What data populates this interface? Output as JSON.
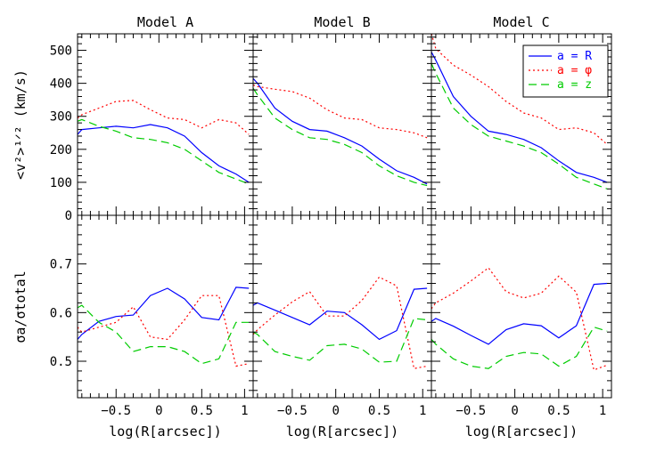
{
  "figure": {
    "xlabel": "log(R[arcsec])",
    "ylabel_top": "<v²>¹ᐟ² (km/s)",
    "ylabel_bottom": "σa/σtotal",
    "legend": {
      "placement": "top-right",
      "entries": [
        {
          "label": "a = R",
          "color": "#0000ff",
          "dash": "solid"
        },
        {
          "label": "a = φ",
          "color": "#ff0000",
          "dash": "dotted"
        },
        {
          "label": "a = z",
          "color": "#00cc00",
          "dash": "dashed"
        }
      ]
    },
    "x_ticks": [
      {
        "value": -0.5,
        "label": "−0.5"
      },
      {
        "value": 0,
        "label": "0"
      },
      {
        "value": 0.5,
        "label": "0.5"
      },
      {
        "value": 1,
        "label": "1"
      }
    ],
    "top_y_ticks": [
      {
        "value": 0,
        "label": "0"
      },
      {
        "value": 100,
        "label": "100"
      },
      {
        "value": 200,
        "label": "200"
      },
      {
        "value": 300,
        "label": "300"
      },
      {
        "value": 400,
        "label": "400"
      },
      {
        "value": 500,
        "label": "500"
      }
    ],
    "bottom_y_ticks": [
      {
        "value": 0.5,
        "label": "0.5"
      },
      {
        "value": 0.6,
        "label": "0.6"
      },
      {
        "value": 0.7,
        "label": "0.7"
      }
    ]
  },
  "chart_data": [
    {
      "type": "line",
      "title": "Model A",
      "xlim": [
        -0.95,
        1.1
      ],
      "top": {
        "ylim": [
          0,
          550
        ],
        "series": [
          {
            "name": "a = R",
            "x": [
              -0.95,
              -0.9,
              -0.7,
              -0.5,
              -0.3,
              -0.1,
              0.1,
              0.3,
              0.5,
              0.7,
              0.9,
              1.05
            ],
            "values": [
              245,
              260,
              265,
              270,
              265,
              275,
              265,
              240,
              190,
              150,
              125,
              100
            ]
          },
          {
            "name": "a = φ",
            "x": [
              -0.95,
              -0.9,
              -0.7,
              -0.5,
              -0.3,
              -0.1,
              0.1,
              0.3,
              0.5,
              0.7,
              0.9,
              1.05
            ],
            "values": [
              295,
              305,
              325,
              345,
              348,
              320,
              295,
              290,
              265,
              290,
              280,
              245
            ]
          },
          {
            "name": "a = z",
            "x": [
              -0.95,
              -0.9,
              -0.7,
              -0.5,
              -0.3,
              -0.1,
              0.1,
              0.3,
              0.5,
              0.7,
              0.9,
              1.05
            ],
            "values": [
              285,
              290,
              270,
              255,
              235,
              230,
              220,
              200,
              165,
              130,
              110,
              95
            ]
          }
        ]
      },
      "bottom": {
        "ylim": [
          0.425,
          0.8
        ],
        "series": [
          {
            "name": "a = R",
            "x": [
              -0.95,
              -0.9,
              -0.7,
              -0.5,
              -0.3,
              -0.1,
              0.1,
              0.3,
              0.5,
              0.7,
              0.9,
              1.05
            ],
            "values": [
              0.545,
              0.555,
              0.582,
              0.592,
              0.595,
              0.635,
              0.65,
              0.628,
              0.59,
              0.585,
              0.652,
              0.65
            ]
          },
          {
            "name": "a = φ",
            "x": [
              -0.95,
              -0.9,
              -0.7,
              -0.5,
              -0.3,
              -0.1,
              0.1,
              0.3,
              0.5,
              0.7,
              0.9,
              1.05
            ],
            "values": [
              0.57,
              0.56,
              0.57,
              0.58,
              0.612,
              0.55,
              0.545,
              0.585,
              0.635,
              0.635,
              0.49,
              0.495
            ]
          },
          {
            "name": "a = z",
            "x": [
              -0.95,
              -0.9,
              -0.7,
              -0.5,
              -0.3,
              -0.1,
              0.1,
              0.3,
              0.5,
              0.7,
              0.9,
              1.05
            ],
            "values": [
              0.61,
              0.615,
              0.58,
              0.56,
              0.52,
              0.53,
              0.53,
              0.52,
              0.495,
              0.505,
              0.58,
              0.58
            ]
          }
        ]
      }
    },
    {
      "type": "line",
      "title": "Model B",
      "xlim": [
        -0.95,
        1.1
      ],
      "top": {
        "ylim": [
          0,
          550
        ],
        "series": [
          {
            "name": "a = R",
            "x": [
              -0.95,
              -0.9,
              -0.7,
              -0.5,
              -0.3,
              -0.1,
              0.1,
              0.3,
              0.5,
              0.7,
              0.9,
              1.05
            ],
            "values": [
              415,
              400,
              325,
              285,
              260,
              255,
              235,
              210,
              170,
              135,
              115,
              95
            ]
          },
          {
            "name": "a = φ",
            "x": [
              -0.95,
              -0.9,
              -0.7,
              -0.5,
              -0.3,
              -0.1,
              0.1,
              0.3,
              0.5,
              0.7,
              0.9,
              1.05
            ],
            "values": [
              395,
              390,
              382,
              375,
              355,
              320,
              295,
              290,
              265,
              260,
              250,
              235
            ]
          },
          {
            "name": "a = z",
            "x": [
              -0.95,
              -0.9,
              -0.7,
              -0.5,
              -0.3,
              -0.1,
              0.1,
              0.3,
              0.5,
              0.7,
              0.9,
              1.05
            ],
            "values": [
              385,
              365,
              295,
              260,
              235,
              230,
              215,
              190,
              150,
              120,
              100,
              90
            ]
          }
        ]
      },
      "bottom": {
        "ylim": [
          0.425,
          0.8
        ],
        "series": [
          {
            "name": "a = R",
            "x": [
              -0.95,
              -0.9,
              -0.7,
              -0.5,
              -0.3,
              -0.1,
              0.1,
              0.3,
              0.5,
              0.7,
              0.9,
              1.05
            ],
            "values": [
              0.615,
              0.62,
              0.605,
              0.59,
              0.575,
              0.603,
              0.6,
              0.575,
              0.545,
              0.563,
              0.648,
              0.65
            ]
          },
          {
            "name": "a = φ",
            "x": [
              -0.95,
              -0.9,
              -0.7,
              -0.5,
              -0.3,
              -0.1,
              0.1,
              0.3,
              0.5,
              0.7,
              0.9,
              1.05
            ],
            "values": [
              0.555,
              0.565,
              0.595,
              0.622,
              0.643,
              0.593,
              0.593,
              0.625,
              0.673,
              0.655,
              0.485,
              0.49
            ]
          },
          {
            "name": "a = z",
            "x": [
              -0.95,
              -0.9,
              -0.7,
              -0.5,
              -0.3,
              -0.1,
              0.1,
              0.3,
              0.5,
              0.7,
              0.9,
              1.05
            ],
            "values": [
              0.56,
              0.555,
              0.52,
              0.51,
              0.502,
              0.532,
              0.535,
              0.525,
              0.498,
              0.5,
              0.588,
              0.585
            ]
          }
        ]
      }
    },
    {
      "type": "line",
      "title": "Model C",
      "xlim": [
        -0.95,
        1.1
      ],
      "top": {
        "ylim": [
          0,
          550
        ],
        "series": [
          {
            "name": "a = R",
            "x": [
              -0.95,
              -0.9,
              -0.7,
              -0.5,
              -0.3,
              -0.1,
              0.1,
              0.3,
              0.5,
              0.7,
              0.9,
              1.05
            ],
            "values": [
              495,
              470,
              360,
              300,
              255,
              245,
              230,
              205,
              165,
              130,
              115,
              100
            ]
          },
          {
            "name": "a = φ",
            "x": [
              -0.95,
              -0.9,
              -0.7,
              -0.5,
              -0.3,
              -0.1,
              0.1,
              0.3,
              0.5,
              0.7,
              0.9,
              1.05
            ],
            "values": [
              550,
              505,
              455,
              425,
              390,
              345,
              310,
              295,
              260,
              265,
              250,
              215
            ]
          },
          {
            "name": "a = z",
            "x": [
              -0.95,
              -0.9,
              -0.7,
              -0.5,
              -0.3,
              -0.1,
              0.1,
              0.3,
              0.5,
              0.7,
              0.9,
              1.05
            ],
            "values": [
              460,
              430,
              325,
              275,
              240,
              225,
              210,
              190,
              155,
              115,
              95,
              80
            ]
          }
        ]
      },
      "bottom": {
        "ylim": [
          0.425,
          0.8
        ],
        "series": [
          {
            "name": "a = R",
            "x": [
              -0.95,
              -0.9,
              -0.7,
              -0.5,
              -0.3,
              -0.1,
              0.1,
              0.3,
              0.5,
              0.7,
              0.9,
              1.05
            ],
            "values": [
              0.582,
              0.588,
              0.572,
              0.553,
              0.535,
              0.565,
              0.577,
              0.573,
              0.548,
              0.573,
              0.658,
              0.66
            ]
          },
          {
            "name": "a = φ",
            "x": [
              -0.95,
              -0.9,
              -0.7,
              -0.5,
              -0.3,
              -0.1,
              0.1,
              0.3,
              0.5,
              0.7,
              0.9,
              1.05
            ],
            "values": [
              0.608,
              0.62,
              0.64,
              0.665,
              0.692,
              0.643,
              0.63,
              0.64,
              0.675,
              0.642,
              0.482,
              0.492
            ]
          },
          {
            "name": "a = z",
            "x": [
              -0.95,
              -0.9,
              -0.7,
              -0.5,
              -0.3,
              -0.1,
              0.1,
              0.3,
              0.5,
              0.7,
              0.9,
              1.05
            ],
            "values": [
              0.545,
              0.535,
              0.505,
              0.49,
              0.485,
              0.51,
              0.518,
              0.515,
              0.49,
              0.51,
              0.57,
              0.562
            ]
          }
        ]
      }
    }
  ]
}
